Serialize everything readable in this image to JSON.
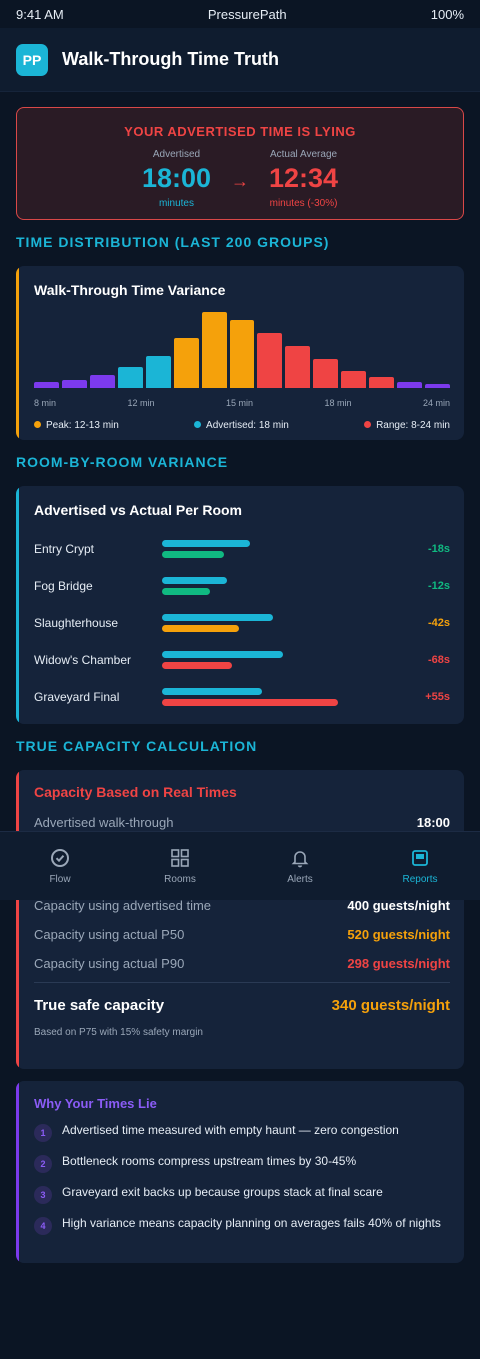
{
  "status": {
    "time": "9:41 AM",
    "carrier": "PressurePath",
    "battery": "100%"
  },
  "header": {
    "logo": "PP",
    "title": "Walk-Through Time Truth"
  },
  "alert": {
    "title": "YOUR ADVERTISED TIME IS LYING",
    "advertised_label": "Advertised",
    "advertised_value": "18:00",
    "advertised_unit": "minutes",
    "arrow": "→",
    "actual_label": "Actual Average",
    "actual_value": "12:34",
    "actual_unit": "minutes (-30%)"
  },
  "sections": {
    "distribution": "TIME DISTRIBUTION (LAST 200 GROUPS)",
    "rooms": "ROOM-BY-ROOM VARIANCE",
    "capacity": "TRUE CAPACITY CALCULATION"
  },
  "histogram": {
    "title": "Walk-Through Time Variance",
    "axis": [
      "8 min",
      "12 min",
      "15 min",
      "18 min",
      "24 min"
    ],
    "legend": {
      "peak": "Peak: 12-13 min",
      "advertised": "Advertised: 18 min",
      "range": "Range: 8-24 min"
    },
    "colors": {
      "purple": "#7c3aed",
      "cyan": "#1bb5d6",
      "orange": "#f5a10b",
      "red": "#ef4444"
    }
  },
  "chart_data": {
    "type": "bar",
    "title": "Walk-Through Time Variance",
    "x_tick_labels": [
      "8 min",
      "12 min",
      "15 min",
      "18 min",
      "24 min"
    ],
    "values": [
      8,
      10,
      17,
      28,
      42,
      66,
      100,
      89,
      72,
      55,
      38,
      22,
      15,
      8,
      5
    ],
    "colors": [
      "purple",
      "purple",
      "purple",
      "cyan",
      "cyan",
      "orange",
      "orange",
      "orange",
      "red",
      "red",
      "red",
      "red",
      "red",
      "purple",
      "purple"
    ]
  },
  "rooms": {
    "title": "Advertised vs Actual Per Room",
    "items": [
      {
        "name": "Entry Crypt",
        "advertised": 0.5,
        "actual": 0.35,
        "actual_color": "green",
        "delta": "-18s"
      },
      {
        "name": "Fog Bridge",
        "advertised": 0.37,
        "actual": 0.27,
        "actual_color": "green",
        "delta": "-12s"
      },
      {
        "name": "Slaughterhouse",
        "advertised": 0.63,
        "actual": 0.44,
        "actual_color": "orange",
        "delta": "-42s"
      },
      {
        "name": "Widow's Chamber",
        "advertised": 0.69,
        "actual": 0.4,
        "actual_color": "red",
        "delta": "-68s"
      },
      {
        "name": "Graveyard Final",
        "advertised": 0.57,
        "actual": 1.0,
        "actual_color": "red",
        "delta": "+55s"
      }
    ]
  },
  "capacity": {
    "title": "Capacity Based on Real Times",
    "advertised_walk_label": "Advertised walk-through",
    "advertised_walk_value": "18:00",
    "using_advertised_label": "Capacity using advertised time",
    "using_advertised_value": "400 guests/night",
    "using_p50_label": "Capacity using actual P50",
    "using_p50_value": "520 guests/night",
    "using_p90_label": "Capacity using actual P90",
    "using_p90_value": "298 guests/night",
    "true_label": "True safe capacity",
    "true_value": "340 guests/night",
    "note": "Based on P75 with 15% safety margin"
  },
  "why": {
    "title": "Why Your Times Lie",
    "items": [
      {
        "num": "1",
        "text": "Advertised time measured with empty haunt — zero congestion"
      },
      {
        "num": "2",
        "text": "Bottleneck rooms compress upstream times by 30-45%"
      },
      {
        "num": "3",
        "text": "Graveyard exit backs up because groups stack at final scare"
      },
      {
        "num": "4",
        "text": "High variance means capacity planning on averages fails 40% of nights"
      }
    ]
  },
  "nav": {
    "flow": "Flow",
    "rooms": "Rooms",
    "alerts": "Alerts",
    "reports": "Reports"
  }
}
